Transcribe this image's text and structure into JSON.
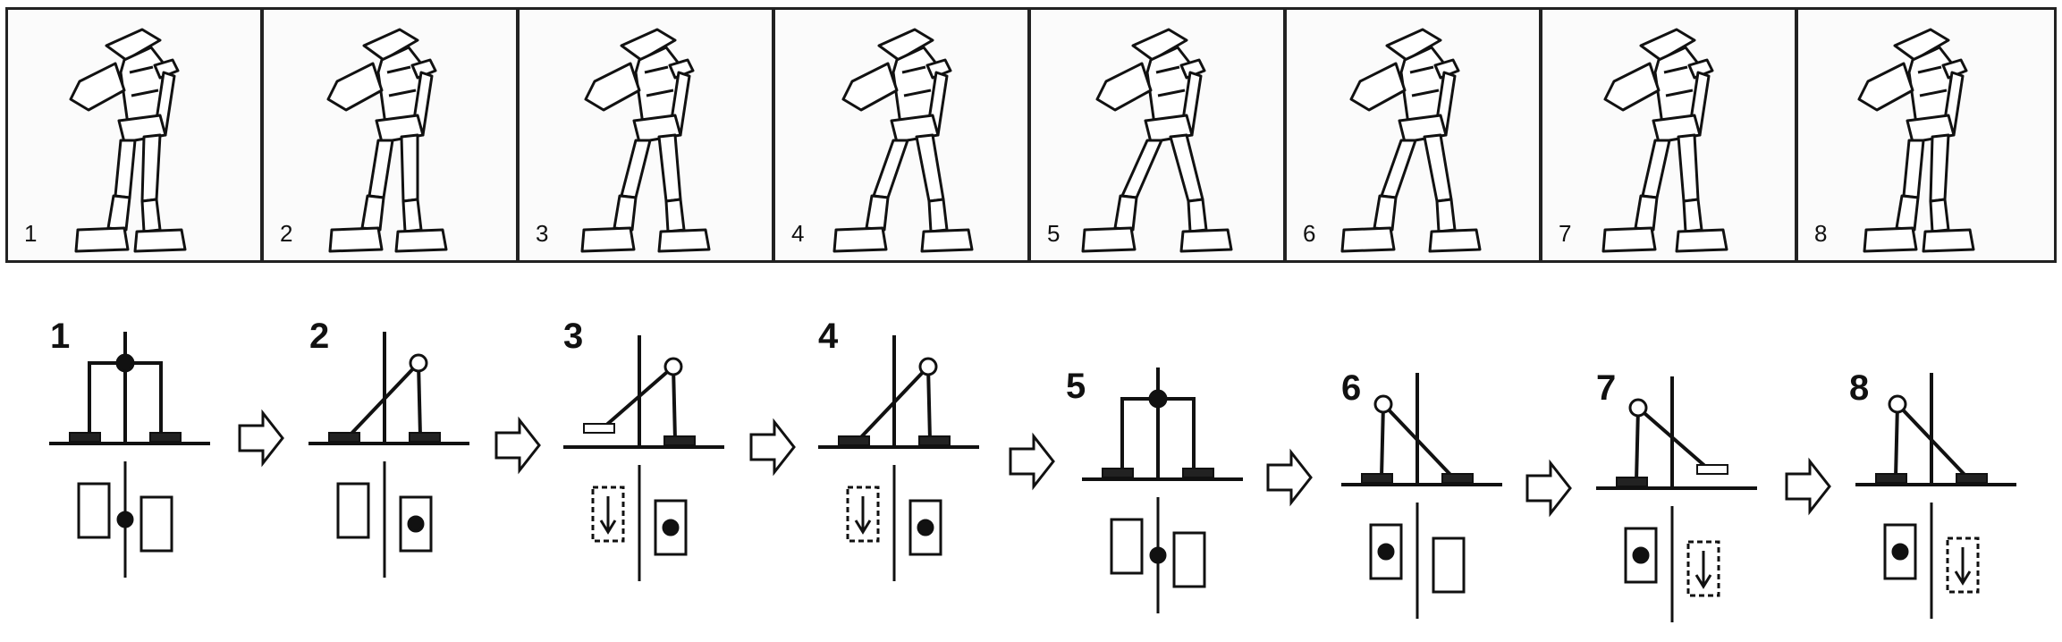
{
  "photo_frames": [
    {
      "label": "1"
    },
    {
      "label": "2"
    },
    {
      "label": "3"
    },
    {
      "label": "4"
    },
    {
      "label": "5"
    },
    {
      "label": "6"
    },
    {
      "label": "7"
    },
    {
      "label": "8"
    }
  ],
  "diagram_steps": [
    {
      "label": "1",
      "phase": "double-support"
    },
    {
      "label": "2",
      "phase": "shift-right"
    },
    {
      "label": "3",
      "phase": "lift-left"
    },
    {
      "label": "4",
      "phase": "swing-left"
    },
    {
      "label": "5",
      "phase": "double-support"
    },
    {
      "label": "6",
      "phase": "shift-left"
    },
    {
      "label": "7",
      "phase": "lift-right"
    },
    {
      "label": "8",
      "phase": "swing-right"
    }
  ],
  "icons": {
    "arrow": "hollow-right-arrow-icon",
    "robot": "humanoid-robot-icon"
  },
  "colors": {
    "ink": "#111111",
    "frame_border": "#222222",
    "background": "#ffffff"
  }
}
